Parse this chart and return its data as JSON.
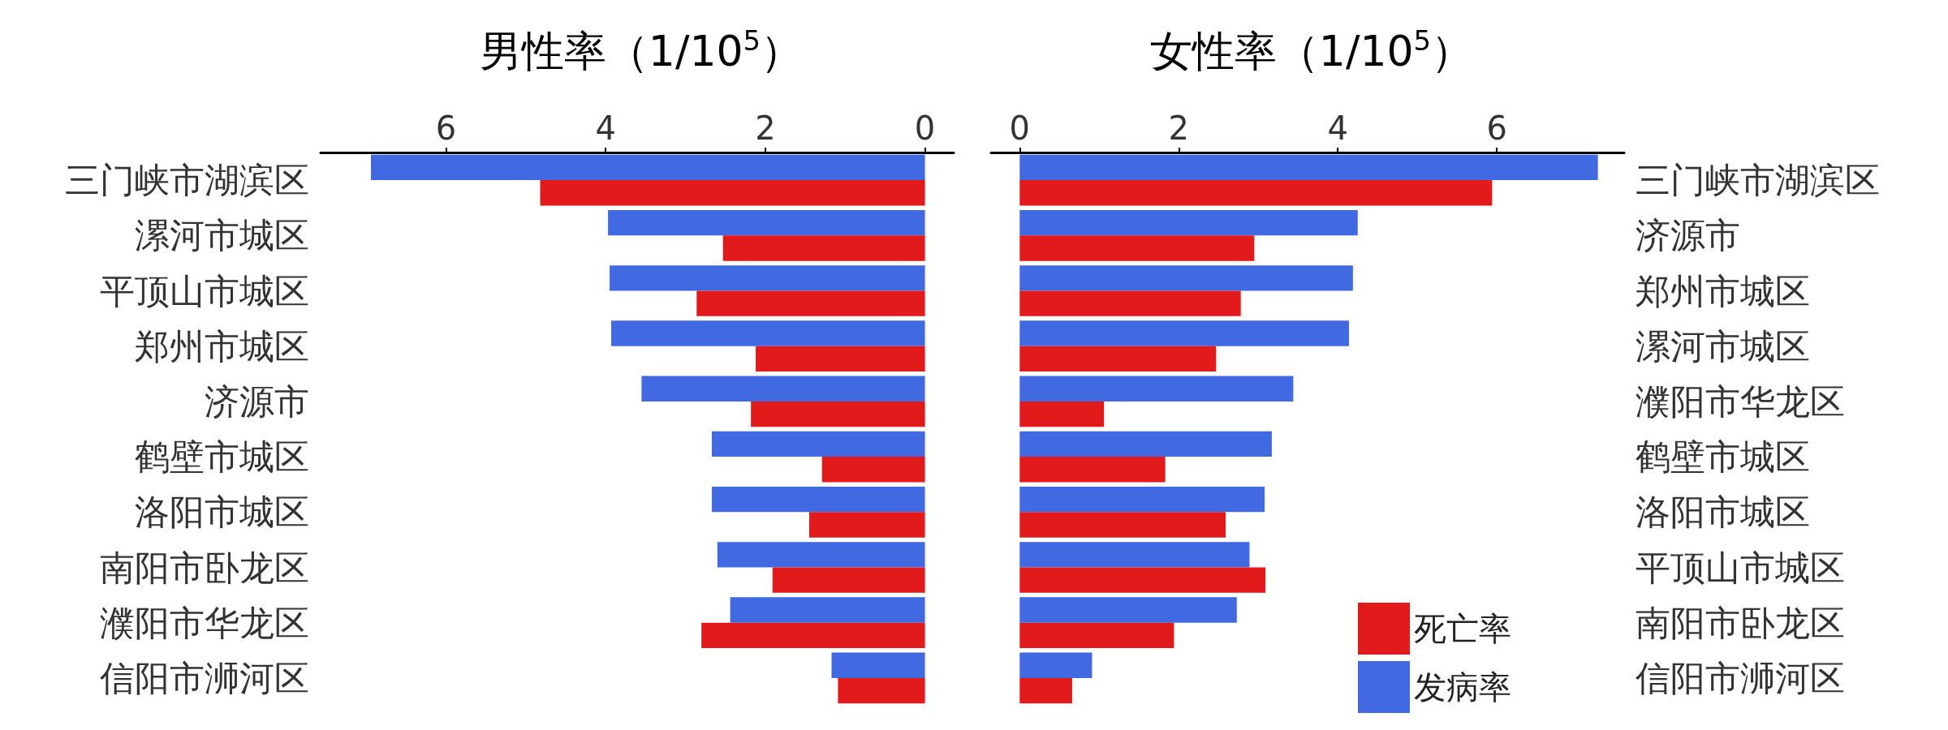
{
  "chart_data": [
    {
      "type": "bar",
      "orientation": "horizontal",
      "title": "男性率（1/10$^{5}$）",
      "categories": [
        "三门峡市湖滨区",
        "漯河市城区",
        "平顶山市城区",
        "郑州市城区",
        "济源市",
        "鹤壁市城区",
        "洛阳市城区",
        "南阳市卧龙区",
        "濮阳市华龙区",
        "信阳市浉河区"
      ],
      "series": [
        {
          "color": "#4169e1",
          "values": [
            6.94,
            3.97,
            3.95,
            3.93,
            3.55,
            2.67,
            2.67,
            2.6,
            2.44,
            1.17
          ]
        },
        {
          "color": "#e31a1c",
          "values": [
            4.82,
            2.53,
            2.86,
            2.12,
            2.18,
            1.29,
            1.45,
            1.91,
            2.8,
            1.09
          ]
        }
      ],
      "xlim": [
        7.57,
        -0.36
      ],
      "xticks": [
        0,
        2,
        4,
        6
      ],
      "grid": false,
      "legend": false
    },
    {
      "type": "bar",
      "orientation": "horizontal",
      "title": "女性率（1/10$^{5}$）",
      "categories": [
        "三门峡市湖滨区",
        "济源市",
        "郑州市城区",
        "漯河市城区",
        "濮阳市华龙区",
        "鹤壁市城区",
        "洛阳市城区",
        "平顶山市城区",
        "南阳市卧龙区",
        "信阳市浉河区"
      ],
      "series": [
        {
          "name": "发病率",
          "color": "#4169e1",
          "values": [
            7.27,
            4.25,
            4.19,
            4.14,
            3.44,
            3.17,
            3.08,
            2.89,
            2.73,
            0.91
          ]
        },
        {
          "name": "死亡率",
          "color": "#e31a1c",
          "values": [
            5.94,
            2.95,
            2.78,
            2.47,
            1.06,
            1.83,
            2.59,
            3.09,
            1.94,
            0.66
          ]
        }
      ],
      "xlim": [
        -0.36,
        7.6
      ],
      "xticks": [
        0,
        2,
        4,
        6
      ],
      "grid": false,
      "legend": "bottom right"
    }
  ]
}
